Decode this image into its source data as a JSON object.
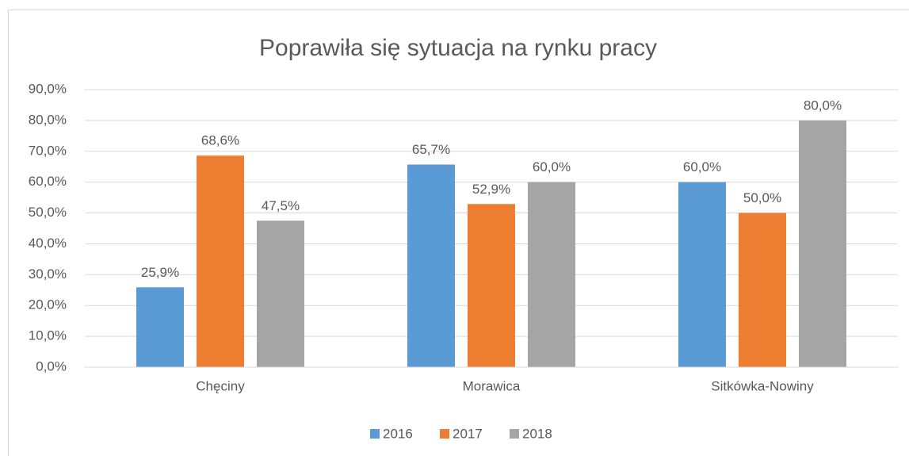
{
  "chart_data": {
    "type": "bar",
    "title": "Poprawiła się sytuacja na rynku pracy",
    "categories": [
      "Chęciny",
      "Morawica",
      "Sitkówka-Nowiny"
    ],
    "series": [
      {
        "name": "2016",
        "color": "#5b9bd5",
        "values": [
          25.9,
          65.7,
          60.0
        ],
        "value_labels": [
          "25,9%",
          "65,7%",
          "60,0%"
        ]
      },
      {
        "name": "2017",
        "color": "#ed7d31",
        "values": [
          68.6,
          52.9,
          50.0
        ],
        "value_labels": [
          "68,6%",
          "52,9%",
          "50,0%"
        ]
      },
      {
        "name": "2018",
        "color": "#a5a5a5",
        "values": [
          47.5,
          60.0,
          80.0
        ],
        "value_labels": [
          "47,5%",
          "60,0%",
          "80,0%"
        ]
      }
    ],
    "ylim": [
      0,
      90
    ],
    "yticks": [
      {
        "value": 0,
        "label": "0,0%"
      },
      {
        "value": 10,
        "label": "10,0%"
      },
      {
        "value": 20,
        "label": "20,0%"
      },
      {
        "value": 30,
        "label": "30,0%"
      },
      {
        "value": 40,
        "label": "40,0%"
      },
      {
        "value": 50,
        "label": "50,0%"
      },
      {
        "value": 60,
        "label": "60,0%"
      },
      {
        "value": 70,
        "label": "70,0%"
      },
      {
        "value": 80,
        "label": "80,0%"
      },
      {
        "value": 90,
        "label": "90,0%"
      }
    ],
    "grid": true,
    "legend": "bottom"
  }
}
